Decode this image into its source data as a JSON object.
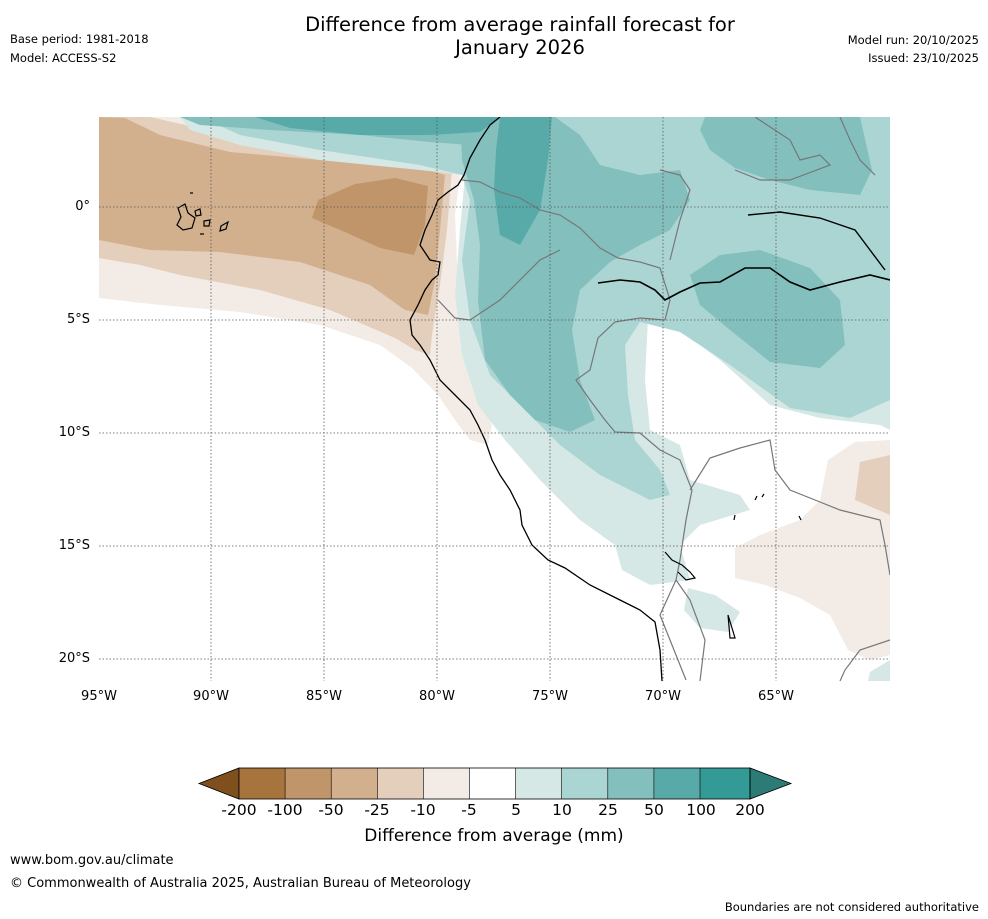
{
  "header": {
    "base_period": "Base period: 1981-2018",
    "model": "Model: ACCESS-S2",
    "title_line1": "Difference from average rainfall forecast for",
    "title_line2": "January 2026",
    "model_run": "Model run: 20/10/2025",
    "issued": "Issued: 23/10/2025"
  },
  "map": {
    "lat_ticks": [
      "0°",
      "5°S",
      "10°S",
      "15°S",
      "20°S"
    ],
    "lon_ticks": [
      "95°W",
      "90°W",
      "85°W",
      "80°W",
      "75°W",
      "70°W",
      "65°W"
    ]
  },
  "colorbar": {
    "labels": [
      "-200",
      "-100",
      "-50",
      "-25",
      "-10",
      "-5",
      "5",
      "10",
      "25",
      "50",
      "100",
      "200"
    ],
    "colors": [
      "#7f4f1d",
      "#a8743d",
      "#c0956a",
      "#d2b08d",
      "#e3cfbc",
      "#f3ece6",
      "#ffffff",
      "#d5e8e6",
      "#abd5d3",
      "#83c0bd",
      "#58aaa8",
      "#349a95",
      "#2c7b77"
    ],
    "label": "Difference from average (mm)"
  },
  "footer": {
    "url": "www.bom.gov.au/climate",
    "copyright": "© Commonwealth of Australia 2025, Australian Bureau of Meteorology",
    "disclaimer": "Boundaries are not considered authoritative"
  }
}
